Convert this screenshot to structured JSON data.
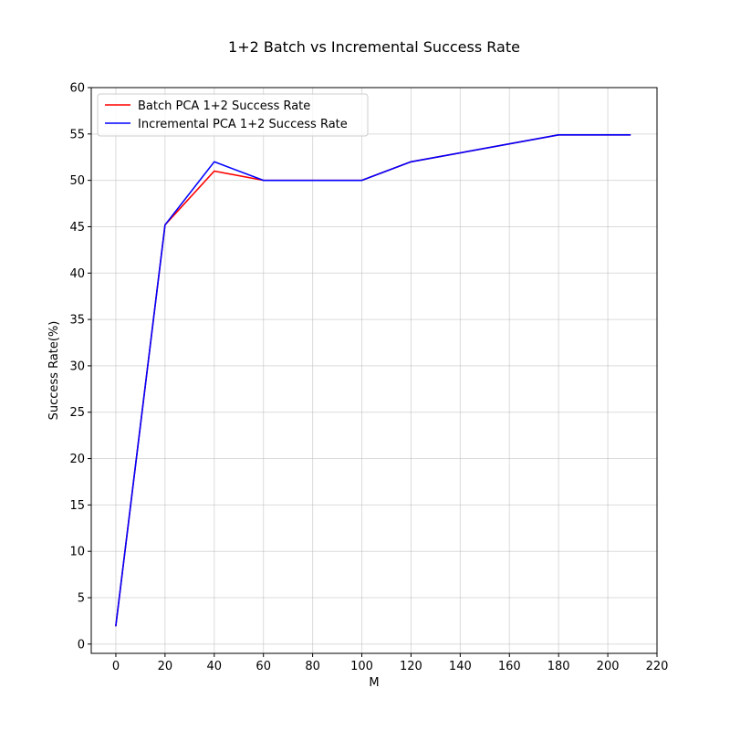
{
  "chart_data": {
    "type": "line",
    "title": "1+2 Batch vs Incremental Success Rate",
    "xlabel": "M",
    "ylabel": "Success Rate(%)",
    "xlim": [
      -10,
      220
    ],
    "ylim": [
      -1,
      60
    ],
    "xticks": [
      0,
      20,
      40,
      60,
      80,
      100,
      120,
      140,
      160,
      180,
      200,
      220
    ],
    "yticks": [
      0,
      5,
      10,
      15,
      20,
      25,
      30,
      35,
      40,
      45,
      50,
      55,
      60
    ],
    "grid": true,
    "legend_position": "top-left",
    "series": [
      {
        "name": "Batch PCA 1+2 Success Rate",
        "color": "#ff0000",
        "x": [
          0,
          20,
          40,
          60,
          100,
          120,
          180,
          209
        ],
        "y": [
          2,
          45.2,
          51,
          50,
          50,
          52,
          54.9,
          54.9
        ]
      },
      {
        "name": "Incremental PCA 1+2 Success Rate",
        "color": "#0000ff",
        "x": [
          0,
          20,
          40,
          60,
          100,
          120,
          180,
          209
        ],
        "y": [
          2,
          45.2,
          52,
          50,
          50,
          52,
          54.9,
          54.9
        ]
      }
    ]
  }
}
